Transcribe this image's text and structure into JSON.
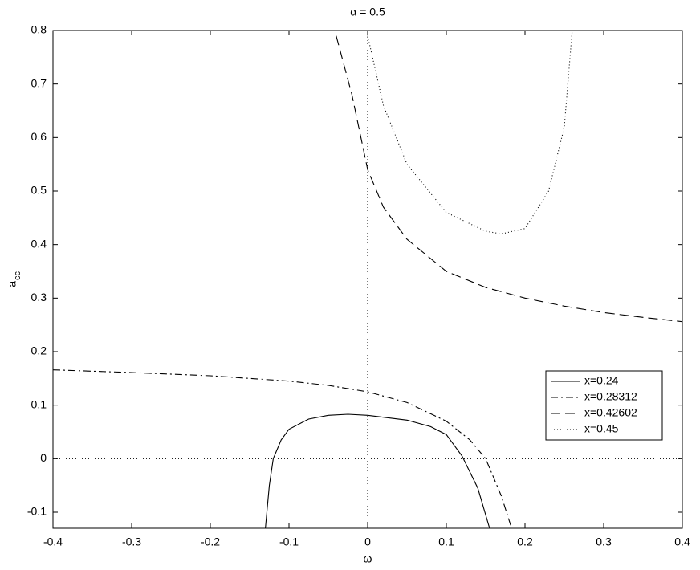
{
  "chart_data": {
    "type": "line",
    "title": "α = 0.5",
    "xlabel": "ω",
    "ylabel": {
      "main": "a",
      "sub": "cc"
    },
    "xlim": [
      -0.4,
      0.4
    ],
    "ylim": [
      -0.13,
      0.8
    ],
    "xticks": [
      -0.4,
      -0.3,
      -0.2,
      -0.1,
      0,
      0.1,
      0.2,
      0.3,
      0.4
    ],
    "yticks": [
      -0.1,
      0,
      0.1,
      0.2,
      0.3,
      0.4,
      0.5,
      0.6,
      0.7,
      0.8
    ],
    "zero_lines": true,
    "legend": "lower right",
    "series": [
      {
        "name": "x=0.24",
        "color": "#000000",
        "linestyle": "solid",
        "x": [
          -0.13,
          -0.125,
          -0.12,
          -0.11,
          -0.1,
          -0.075,
          -0.05,
          -0.025,
          0,
          0.05,
          0.08,
          0.1,
          0.12,
          0.14,
          0.155
        ],
        "values": [
          -0.13,
          -0.05,
          0.0,
          0.035,
          0.055,
          0.074,
          0.081,
          0.083,
          0.081,
          0.072,
          0.06,
          0.045,
          0.005,
          -0.055,
          -0.13
        ]
      },
      {
        "name": "x=0.28312",
        "color": "#000000",
        "linestyle": "dashdot",
        "x": [
          -0.4,
          -0.3,
          -0.2,
          -0.1,
          -0.05,
          0,
          0.05,
          0.1,
          0.13,
          0.15,
          0.17,
          0.183
        ],
        "values": [
          0.166,
          0.161,
          0.155,
          0.145,
          0.137,
          0.125,
          0.105,
          0.07,
          0.035,
          0.0,
          -0.07,
          -0.13
        ]
      },
      {
        "name": "x=0.42602",
        "color": "#000000",
        "linestyle": "dashed",
        "x": [
          -0.04,
          -0.02,
          0,
          0.02,
          0.05,
          0.1,
          0.15,
          0.2,
          0.25,
          0.3,
          0.35,
          0.4
        ],
        "values": [
          0.79,
          0.68,
          0.54,
          0.47,
          0.41,
          0.35,
          0.32,
          0.3,
          0.285,
          0.273,
          0.264,
          0.256
        ]
      },
      {
        "name": "x=0.45",
        "color": "#000000",
        "linestyle": "dotted",
        "x": [
          0,
          0.02,
          0.05,
          0.1,
          0.15,
          0.17,
          0.2,
          0.23,
          0.25,
          0.26
        ],
        "values": [
          0.79,
          0.66,
          0.55,
          0.46,
          0.425,
          0.42,
          0.43,
          0.5,
          0.62,
          0.8
        ]
      }
    ]
  }
}
